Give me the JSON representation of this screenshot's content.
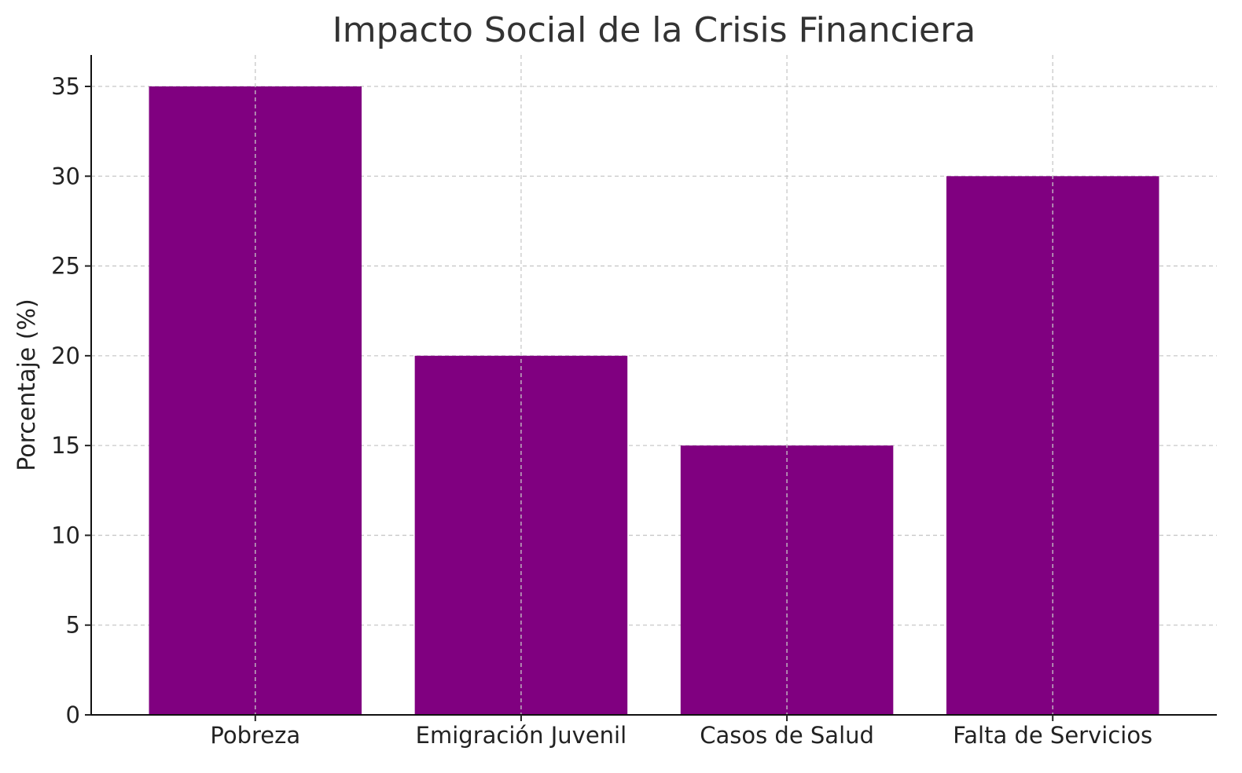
{
  "chart_data": {
    "type": "bar",
    "title": "Impacto Social de la Crisis Financiera",
    "xlabel": "",
    "ylabel": "Porcentaje (%)",
    "categories": [
      "Pobreza",
      "Emigración Juvenil",
      "Casos de Salud",
      "Falta de Servicios"
    ],
    "values": [
      35,
      20,
      15,
      30
    ],
    "ylim": [
      0,
      36.75
    ],
    "yticks": [
      0,
      5,
      10,
      15,
      20,
      25,
      30,
      35
    ],
    "grid": true,
    "legend": "none",
    "bar_color": "#800080",
    "grid_color": "#c8c8c8",
    "text_color": "#333333"
  }
}
